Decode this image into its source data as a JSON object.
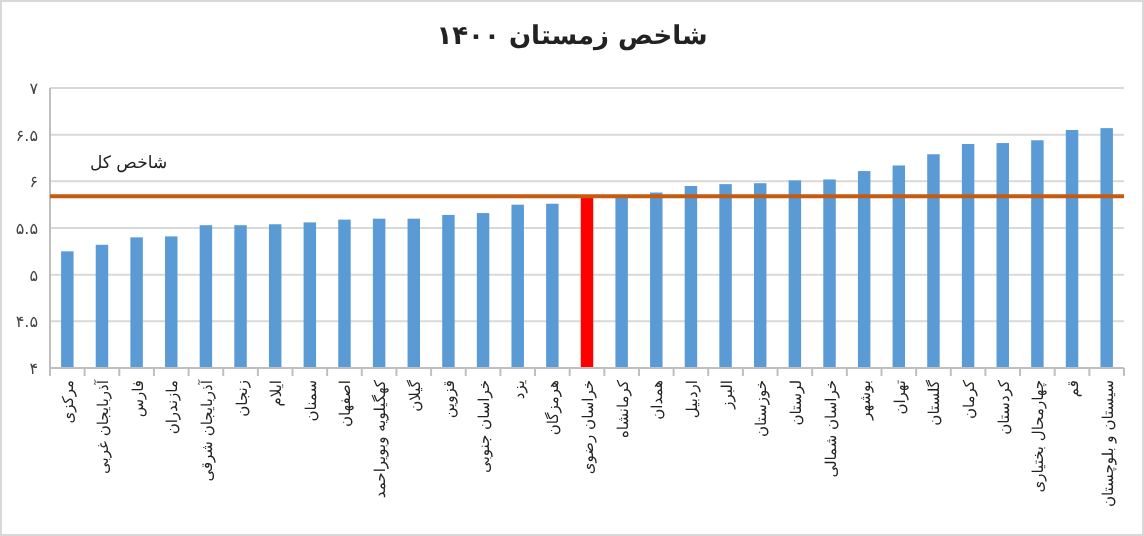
{
  "chart_data": {
    "type": "bar",
    "title": "شاخص زمستان ۱۴۰۰",
    "categories": [
      "مرکزی",
      "آذربایجان غربی",
      "فارس",
      "مازندران",
      "آذربایجان شرقی",
      "زنجان",
      "ایلام",
      "سمنان",
      "اصفهان",
      "کهگیلویه وبویراحمد",
      "گیلان",
      "قزوین",
      "خراسان جنوبی",
      "یزد",
      "هرمزگان",
      "خراسان رضوی",
      "کرمانشاه",
      "همدان",
      "اردبیل",
      "البرز",
      "خوزستان",
      "لرستان",
      "خراسان شمالی",
      "بوشهر",
      "تهران",
      "گلستان",
      "کرمان",
      "کردستان",
      "چهارمحال بختیاری",
      "قم",
      "سیستان و بلوچستان"
    ],
    "values": [
      5.25,
      5.32,
      5.4,
      5.41,
      5.53,
      5.53,
      5.54,
      5.56,
      5.59,
      5.6,
      5.6,
      5.64,
      5.66,
      5.75,
      5.76,
      5.84,
      5.84,
      5.88,
      5.95,
      5.97,
      5.98,
      6.01,
      6.02,
      6.11,
      6.17,
      6.29,
      6.4,
      6.41,
      6.44,
      6.55,
      6.57
    ],
    "colors": [
      "#5b9bd5",
      "#5b9bd5",
      "#5b9bd5",
      "#5b9bd5",
      "#5b9bd5",
      "#5b9bd5",
      "#5b9bd5",
      "#5b9bd5",
      "#5b9bd5",
      "#5b9bd5",
      "#5b9bd5",
      "#5b9bd5",
      "#5b9bd5",
      "#5b9bd5",
      "#5b9bd5",
      "#ff0000",
      "#5b9bd5",
      "#5b9bd5",
      "#5b9bd5",
      "#5b9bd5",
      "#5b9bd5",
      "#5b9bd5",
      "#5b9bd5",
      "#5b9bd5",
      "#5b9bd5",
      "#5b9bd5",
      "#5b9bd5",
      "#5b9bd5",
      "#5b9bd5",
      "#5b9bd5",
      "#5b9bd5"
    ],
    "ylim": [
      4,
      7
    ],
    "yticks": [
      {
        "value": 4,
        "label": "۴"
      },
      {
        "value": 4.5,
        "label": "۴.۵"
      },
      {
        "value": 5,
        "label": "۵"
      },
      {
        "value": 5.5,
        "label": "۵.۵"
      },
      {
        "value": 6,
        "label": "۶"
      },
      {
        "value": 6.5,
        "label": "۶.۵"
      },
      {
        "value": 7,
        "label": "۷"
      }
    ],
    "grid": "y",
    "ref_lines": [
      {
        "axis": "y",
        "value": 5.84,
        "label": "شاخص کل",
        "color": "#c55a11"
      }
    ]
  }
}
